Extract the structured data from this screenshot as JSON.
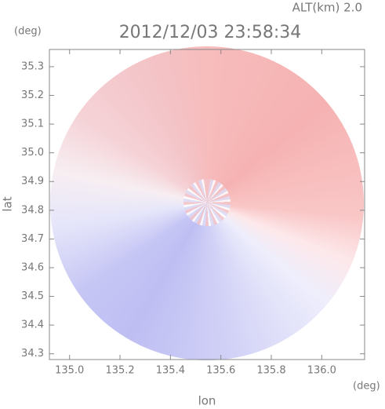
{
  "chart_data": {
    "type": "image",
    "title": "2012/12/03 23:58:34",
    "subtitle": "ALT(km) 2.0",
    "x_label": "lon",
    "y_label": "lat",
    "x_unit": "(deg)",
    "y_unit": "(deg)",
    "xlim": [
      134.92,
      136.17
    ],
    "ylim": [
      34.28,
      35.36
    ],
    "xticks": [
      {
        "value": 135,
        "label": "135.0"
      },
      135.2,
      135.4,
      135.6,
      135.8,
      {
        "value": 136,
        "label": "136.0"
      }
    ],
    "yticks": [
      34.3,
      34.4,
      34.5,
      34.6,
      34.7,
      34.8,
      34.9,
      {
        "value": 35,
        "label": "35.0"
      },
      35.1,
      35.2,
      35.3
    ]
  }
}
